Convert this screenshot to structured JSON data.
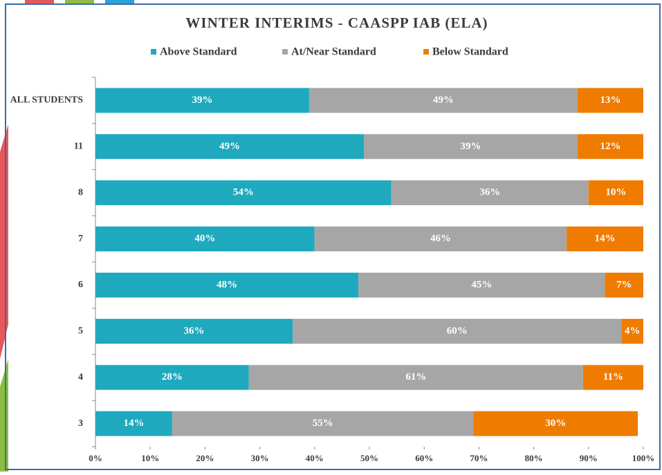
{
  "chart_data": {
    "type": "stacked_bar_horizontal",
    "title": "WINTER INTERIMS - CAASPP IAB (ELA)",
    "categories": [
      "ALL STUDENTS",
      "11",
      "8",
      "7",
      "6",
      "5",
      "4",
      "3"
    ],
    "series": [
      {
        "name": "Above Standard",
        "color": "#1fa9be",
        "values": [
          39,
          49,
          54,
          40,
          48,
          36,
          28,
          14
        ],
        "value_labels": [
          "39%",
          "49%",
          "54%",
          "40%",
          "48%",
          "36%",
          "28%",
          "14%"
        ]
      },
      {
        "name": "At/Near Standard",
        "color": "#a6a6a6",
        "values": [
          49,
          39,
          36,
          46,
          45,
          60,
          61,
          55
        ],
        "value_labels": [
          "49%",
          "39%",
          "36%",
          "46%",
          "45%",
          "60%",
          "61%",
          "55%"
        ]
      },
      {
        "name": "Below Standard",
        "color": "#ef7c00",
        "values": [
          13,
          12,
          10,
          14,
          7,
          4,
          11,
          30
        ],
        "value_labels": [
          "13%",
          "12%",
          "10%",
          "14%",
          "7%",
          "4%",
          "11%",
          "30%"
        ]
      }
    ],
    "xlim": [
      0,
      100
    ],
    "xticks": [
      {
        "value": 0,
        "label": "0%"
      },
      {
        "value": 10,
        "label": "10%"
      },
      {
        "value": 20,
        "label": "20%"
      },
      {
        "value": 30,
        "label": "30%"
      },
      {
        "value": 40,
        "label": "40%"
      },
      {
        "value": 50,
        "label": "50%"
      },
      {
        "value": 60,
        "label": "60%"
      },
      {
        "value": 70,
        "label": "70%"
      },
      {
        "value": 80,
        "label": "80%"
      },
      {
        "value": 90,
        "label": "90%"
      },
      {
        "value": 100,
        "label": "100%"
      }
    ],
    "legend": "top"
  }
}
